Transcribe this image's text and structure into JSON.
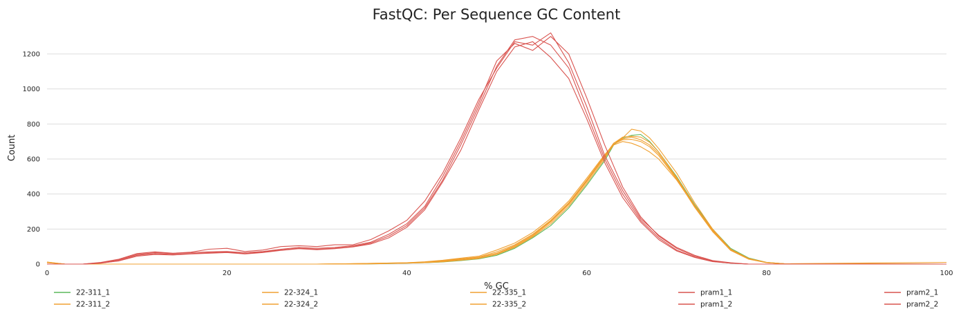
{
  "chart_data": {
    "type": "line",
    "title": "FastQC: Per Sequence GC Content",
    "xlabel": "% GC",
    "ylabel": "Count",
    "xlim": [
      0,
      100
    ],
    "ylim": [
      0,
      1350
    ],
    "xticks": [
      0,
      20,
      40,
      60,
      80,
      100
    ],
    "yticks": [
      0,
      200,
      400,
      600,
      800,
      1000,
      1200
    ],
    "grid": "horizontal",
    "legend_position": "bottom",
    "series": [
      {
        "name": "22-311_1",
        "color": "#5cb85c",
        "x": [
          0,
          2,
          4,
          30,
          35,
          40,
          42,
          44,
          46,
          48,
          50,
          52,
          54,
          56,
          58,
          60,
          62,
          63,
          64,
          65,
          66,
          67,
          68,
          70,
          72,
          74,
          76,
          78,
          80,
          82,
          100
        ],
        "y": [
          10,
          0,
          0,
          0,
          0,
          5,
          8,
          12,
          20,
          30,
          50,
          90,
          150,
          220,
          320,
          450,
          590,
          680,
          720,
          735,
          740,
          700,
          640,
          500,
          340,
          200,
          90,
          35,
          10,
          2,
          0
        ]
      },
      {
        "name": "22-311_2",
        "color": "#f0a030",
        "x": [
          0,
          2,
          4,
          30,
          35,
          40,
          42,
          44,
          46,
          48,
          50,
          52,
          54,
          56,
          58,
          60,
          62,
          63,
          64,
          65,
          66,
          67,
          68,
          70,
          72,
          74,
          76,
          78,
          80,
          82,
          100
        ],
        "y": [
          12,
          0,
          0,
          0,
          0,
          5,
          8,
          13,
          22,
          32,
          55,
          95,
          155,
          230,
          330,
          460,
          600,
          690,
          725,
          730,
          725,
          695,
          640,
          495,
          335,
          195,
          85,
          32,
          10,
          2,
          10
        ]
      },
      {
        "name": "22-324_1",
        "color": "#f0a030",
        "x": [
          0,
          2,
          4,
          30,
          35,
          40,
          42,
          44,
          46,
          48,
          50,
          52,
          54,
          56,
          58,
          60,
          62,
          63,
          64,
          65,
          66,
          67,
          68,
          70,
          72,
          74,
          76,
          78,
          80,
          82,
          100
        ],
        "y": [
          8,
          0,
          0,
          0,
          2,
          6,
          10,
          16,
          26,
          36,
          60,
          100,
          160,
          240,
          340,
          470,
          610,
          680,
          700,
          690,
          670,
          640,
          600,
          480,
          330,
          190,
          80,
          30,
          8,
          2,
          0
        ]
      },
      {
        "name": "22-324_2",
        "color": "#f0a030",
        "x": [
          0,
          2,
          4,
          30,
          35,
          40,
          42,
          44,
          46,
          48,
          50,
          52,
          54,
          56,
          58,
          60,
          62,
          63,
          64,
          65,
          66,
          67,
          68,
          70,
          72,
          74,
          76,
          78,
          80,
          82,
          100
        ],
        "y": [
          9,
          0,
          0,
          0,
          2,
          6,
          11,
          17,
          27,
          38,
          62,
          105,
          165,
          245,
          345,
          475,
          615,
          690,
          720,
          770,
          760,
          720,
          660,
          520,
          350,
          200,
          85,
          32,
          9,
          2,
          0
        ]
      },
      {
        "name": "22-335_1",
        "color": "#f0a030",
        "x": [
          0,
          2,
          4,
          30,
          35,
          40,
          42,
          44,
          46,
          48,
          50,
          52,
          54,
          56,
          58,
          60,
          62,
          63,
          64,
          65,
          66,
          67,
          68,
          70,
          72,
          74,
          76,
          78,
          80,
          82,
          100
        ],
        "y": [
          10,
          0,
          0,
          0,
          3,
          8,
          12,
          20,
          30,
          40,
          70,
          110,
          170,
          250,
          350,
          480,
          620,
          690,
          715,
          725,
          710,
          680,
          630,
          490,
          330,
          190,
          80,
          30,
          8,
          2,
          0
        ]
      },
      {
        "name": "22-335_2",
        "color": "#f0a030",
        "x": [
          0,
          2,
          4,
          30,
          35,
          40,
          42,
          44,
          46,
          48,
          50,
          52,
          54,
          56,
          58,
          60,
          62,
          63,
          64,
          65,
          66,
          67,
          68,
          70,
          72,
          74,
          76,
          78,
          80,
          82,
          100
        ],
        "y": [
          11,
          0,
          0,
          0,
          3,
          8,
          13,
          22,
          34,
          45,
          80,
          120,
          180,
          260,
          360,
          490,
          625,
          685,
          710,
          712,
          700,
          670,
          620,
          485,
          325,
          185,
          78,
          28,
          8,
          2,
          0
        ]
      },
      {
        "name": "pram1_1",
        "color": "#d9534f",
        "x": [
          0,
          4,
          6,
          8,
          10,
          12,
          14,
          16,
          18,
          20,
          22,
          24,
          26,
          28,
          30,
          32,
          34,
          36,
          38,
          40,
          42,
          44,
          46,
          48,
          50,
          52,
          54,
          56,
          58,
          60,
          62,
          64,
          66,
          68,
          70,
          72,
          74,
          76,
          78,
          80,
          100
        ],
        "y": [
          0,
          0,
          5,
          20,
          50,
          60,
          55,
          60,
          65,
          70,
          60,
          70,
          80,
          90,
          85,
          90,
          100,
          120,
          160,
          220,
          320,
          480,
          680,
          900,
          1130,
          1280,
          1300,
          1250,
          1120,
          860,
          600,
          400,
          250,
          150,
          80,
          40,
          15,
          5,
          0,
          0,
          0
        ]
      },
      {
        "name": "pram1_2",
        "color": "#d9534f",
        "x": [
          0,
          4,
          6,
          8,
          10,
          12,
          14,
          16,
          18,
          20,
          22,
          24,
          26,
          28,
          30,
          32,
          34,
          36,
          38,
          40,
          42,
          44,
          46,
          48,
          50,
          52,
          54,
          56,
          58,
          60,
          62,
          64,
          66,
          68,
          70,
          72,
          74,
          76,
          78,
          80,
          100
        ],
        "y": [
          0,
          0,
          8,
          25,
          55,
          65,
          60,
          65,
          70,
          72,
          65,
          72,
          85,
          95,
          90,
          95,
          105,
          125,
          170,
          230,
          330,
          500,
          700,
          920,
          1160,
          1260,
          1220,
          1300,
          1200,
          950,
          680,
          440,
          270,
          160,
          90,
          45,
          18,
          6,
          0,
          0,
          0
        ]
      },
      {
        "name": "pram2_1",
        "color": "#d9534f",
        "x": [
          0,
          4,
          6,
          8,
          10,
          12,
          14,
          16,
          18,
          20,
          22,
          24,
          26,
          28,
          30,
          32,
          34,
          36,
          38,
          40,
          42,
          44,
          46,
          48,
          50,
          52,
          54,
          56,
          58,
          60,
          62,
          64,
          66,
          68,
          70,
          72,
          74,
          76,
          78,
          80,
          100
        ],
        "y": [
          0,
          0,
          6,
          18,
          45,
          55,
          52,
          58,
          62,
          66,
          58,
          66,
          78,
          88,
          82,
          88,
          98,
          115,
          150,
          210,
          310,
          470,
          650,
          880,
          1100,
          1240,
          1270,
          1180,
          1060,
          830,
          580,
          380,
          240,
          140,
          75,
          38,
          14,
          5,
          0,
          0,
          0
        ]
      },
      {
        "name": "pram2_2",
        "color": "#d9534f",
        "x": [
          0,
          4,
          6,
          8,
          10,
          12,
          14,
          16,
          18,
          20,
          22,
          24,
          26,
          28,
          30,
          32,
          34,
          36,
          38,
          40,
          42,
          44,
          46,
          48,
          50,
          52,
          54,
          56,
          58,
          60,
          62,
          64,
          66,
          68,
          70,
          72,
          74,
          76,
          78,
          80,
          100
        ],
        "y": [
          0,
          0,
          10,
          28,
          60,
          70,
          62,
          68,
          85,
          90,
          72,
          80,
          100,
          105,
          100,
          110,
          110,
          140,
          190,
          250,
          360,
          520,
          720,
          940,
          1120,
          1270,
          1250,
          1320,
          1150,
          900,
          620,
          420,
          260,
          165,
          95,
          50,
          20,
          8,
          0,
          0,
          0
        ]
      }
    ]
  }
}
